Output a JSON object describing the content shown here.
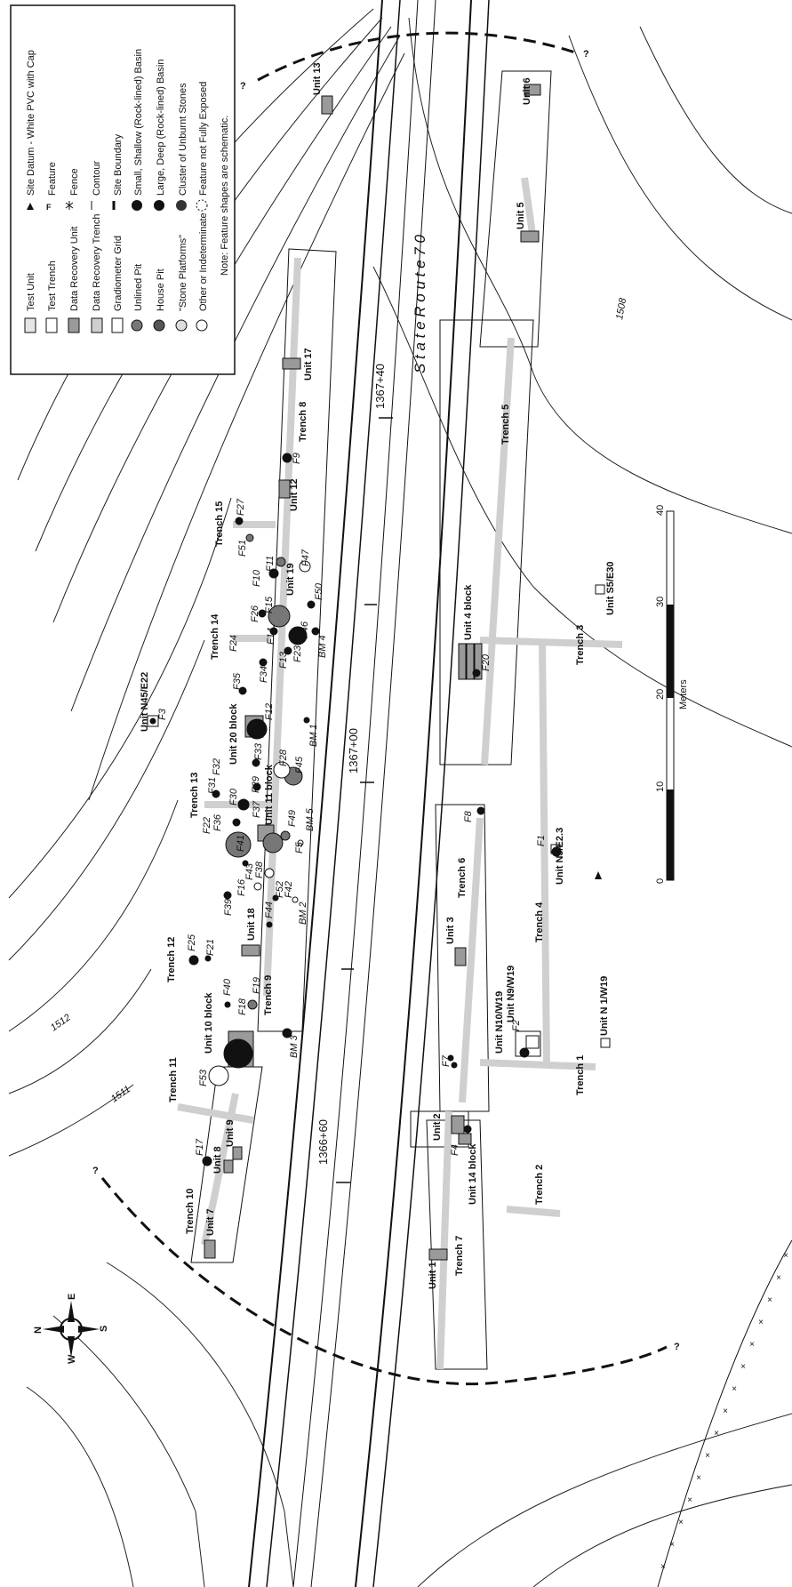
{
  "legend": {
    "items_left": [
      {
        "label": "Test Unit",
        "symbol": "rect-white"
      },
      {
        "label": "Test Trench",
        "symbol": "rect-white-tall"
      },
      {
        "label": "Data Recovery Unit",
        "symbol": "rect-gray"
      },
      {
        "label": "Data Recovery Trench",
        "symbol": "rect-lightgray"
      },
      {
        "label": "Gradiometer Grid",
        "symbol": "rect-outline"
      },
      {
        "label": "Unlined Pit",
        "symbol": "circle-gray"
      },
      {
        "label": "House Pit",
        "symbol": "circle-darkgray"
      },
      {
        "label": "\"Stone Platforms\"",
        "symbol": "circle-light"
      },
      {
        "label": "Other or Indeterminate",
        "symbol": "circle-white"
      }
    ],
    "items_right": [
      {
        "label": "Site Datum - White PVC with Cap",
        "symbol": "triangle"
      },
      {
        "label": "Feature",
        "symbol": "F"
      },
      {
        "label": "Fence",
        "symbol": "fence"
      },
      {
        "label": "Contour",
        "symbol": "line"
      },
      {
        "label": "Site Boundary",
        "symbol": "dash"
      },
      {
        "label": "Small, Shallow (Rock-lined) Basin",
        "symbol": "circle-black"
      },
      {
        "label": "Large, Deep (Rock-lined) Basin",
        "symbol": "circle-black-large"
      },
      {
        "label": "Cluster of Unburnt Stones",
        "symbol": "circle-black-gray"
      },
      {
        "label": "Feature not Fully Exposed",
        "symbol": "circle-dashed"
      }
    ],
    "note": "Note: Feature shapes are schematic."
  },
  "road": {
    "name": "S t a t e   R o u t e   7 0",
    "stations": [
      "1367+40",
      "1367+00",
      "1366+60"
    ]
  },
  "contours": [
    "1512",
    "1511",
    "1508"
  ],
  "compass": {
    "n": "N",
    "e": "E",
    "s": "S",
    "w": "W"
  },
  "scale": {
    "ticks": [
      "0",
      "10",
      "20",
      "30",
      "40"
    ],
    "unit": "Meters"
  },
  "trenches": [
    "Trench 1",
    "Trench 2",
    "Trench 3",
    "Trench 4",
    "Trench 5",
    "Trench 6",
    "Trench 7",
    "Trench 8",
    "Trench 9",
    "Trench 10",
    "Trench 11",
    "Trench 12",
    "Trench 13",
    "Trench 14",
    "Trench 15"
  ],
  "units": [
    "Unit 1",
    "Unit 2",
    "Unit 3",
    "Unit 4 block",
    "Unit 5",
    "Unit 6",
    "Unit 7",
    "Unit 8",
    "Unit 9",
    "Unit 10 block",
    "Unit 11 block",
    "Unit 12",
    "Unit 13",
    "Unit 14 block",
    "Unit 17",
    "Unit 18",
    "Unit 19",
    "Unit 20 block",
    "Unit N45/E22",
    "Unit S5/E30",
    "Unit N3/E2.3",
    "Unit N9/W19",
    "Unit N10/W19",
    "Unit N 1/W19"
  ],
  "features": [
    "F1",
    "F2",
    "F3",
    "F4",
    "F5",
    "F7",
    "F8",
    "F9",
    "F10",
    "F11",
    "F12",
    "F13",
    "F14",
    "F15",
    "F16",
    "F17",
    "F18",
    "F19",
    "F20",
    "F21",
    "F22",
    "F23",
    "F24",
    "F25",
    "F26",
    "F27",
    "F28",
    "F29",
    "F30",
    "F31",
    "F32",
    "F33",
    "F34",
    "F35",
    "F36",
    "F37",
    "F38",
    "F39",
    "F40",
    "F41",
    "F42",
    "F43",
    "F44",
    "F45",
    "F46",
    "F47",
    "F49",
    "F50",
    "F51",
    "F52",
    "F53"
  ],
  "benchmarks": [
    "BM 1",
    "BM 2",
    "BM 3",
    "BM 4",
    "BM 5"
  ],
  "boundary_marks": [
    "?",
    "?",
    "?",
    "?"
  ]
}
